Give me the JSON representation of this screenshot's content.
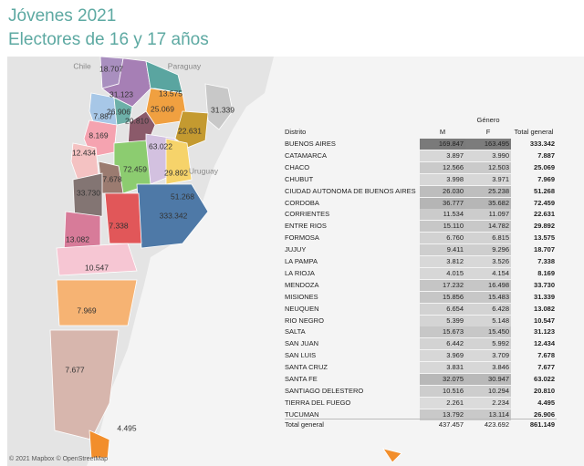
{
  "header": {
    "title": "Jóvenes 2021",
    "subtitle": "Electores de 16 y 17 años"
  },
  "map": {
    "country_labels": [
      "Chile",
      "Paraguay",
      "Uruguay"
    ],
    "province_labels": [
      "18.707",
      "31.123",
      "13.575",
      "7.887",
      "26.906",
      "25.069",
      "20.810",
      "31.339",
      "22.631",
      "8.169",
      "63.022",
      "12.434",
      "72.459",
      "29.892",
      "7.678",
      "33.730",
      "51.268",
      "333.342",
      "7.338",
      "13.082",
      "10.547",
      "7.969",
      "7.677",
      "4.495"
    ],
    "attribution": "© 2021 Mapbox © OpenStreetMap"
  },
  "table": {
    "group_header": "Género",
    "columns": [
      "Distrito",
      "M",
      "F",
      "Total general"
    ],
    "rows": [
      [
        "BUENOS AIRES",
        "169.847",
        "163.495",
        "333.342"
      ],
      [
        "CATAMARCA",
        "3.897",
        "3.990",
        "7.887"
      ],
      [
        "CHACO",
        "12.566",
        "12.503",
        "25.069"
      ],
      [
        "CHUBUT",
        "3.998",
        "3.971",
        "7.969"
      ],
      [
        "CIUDAD AUTONOMA DE BUENOS AIRES",
        "26.030",
        "25.238",
        "51.268"
      ],
      [
        "CORDOBA",
        "36.777",
        "35.682",
        "72.459"
      ],
      [
        "CORRIENTES",
        "11.534",
        "11.097",
        "22.631"
      ],
      [
        "ENTRE RIOS",
        "15.110",
        "14.782",
        "29.892"
      ],
      [
        "FORMOSA",
        "6.760",
        "6.815",
        "13.575"
      ],
      [
        "JUJUY",
        "9.411",
        "9.296",
        "18.707"
      ],
      [
        "LA PAMPA",
        "3.812",
        "3.526",
        "7.338"
      ],
      [
        "LA RIOJA",
        "4.015",
        "4.154",
        "8.169"
      ],
      [
        "MENDOZA",
        "17.232",
        "16.498",
        "33.730"
      ],
      [
        "MISIONES",
        "15.856",
        "15.483",
        "31.339"
      ],
      [
        "NEUQUEN",
        "6.654",
        "6.428",
        "13.082"
      ],
      [
        "RIO NEGRO",
        "5.399",
        "5.148",
        "10.547"
      ],
      [
        "SALTA",
        "15.673",
        "15.450",
        "31.123"
      ],
      [
        "SAN JUAN",
        "6.442",
        "5.992",
        "12.434"
      ],
      [
        "SAN LUIS",
        "3.969",
        "3.709",
        "7.678"
      ],
      [
        "SANTA CRUZ",
        "3.831",
        "3.846",
        "7.677"
      ],
      [
        "SANTA FE",
        "32.075",
        "30.947",
        "63.022"
      ],
      [
        "SANTIAGO DELESTERO",
        "10.516",
        "10.294",
        "20.810"
      ],
      [
        "TIERRA DEL FUEGO",
        "2.261",
        "2.234",
        "4.495"
      ],
      [
        "TUCUMAN",
        "13.792",
        "13.114",
        "26.906"
      ]
    ],
    "total": [
      "Total general",
      "437.457",
      "423.692",
      "861.149"
    ]
  }
}
